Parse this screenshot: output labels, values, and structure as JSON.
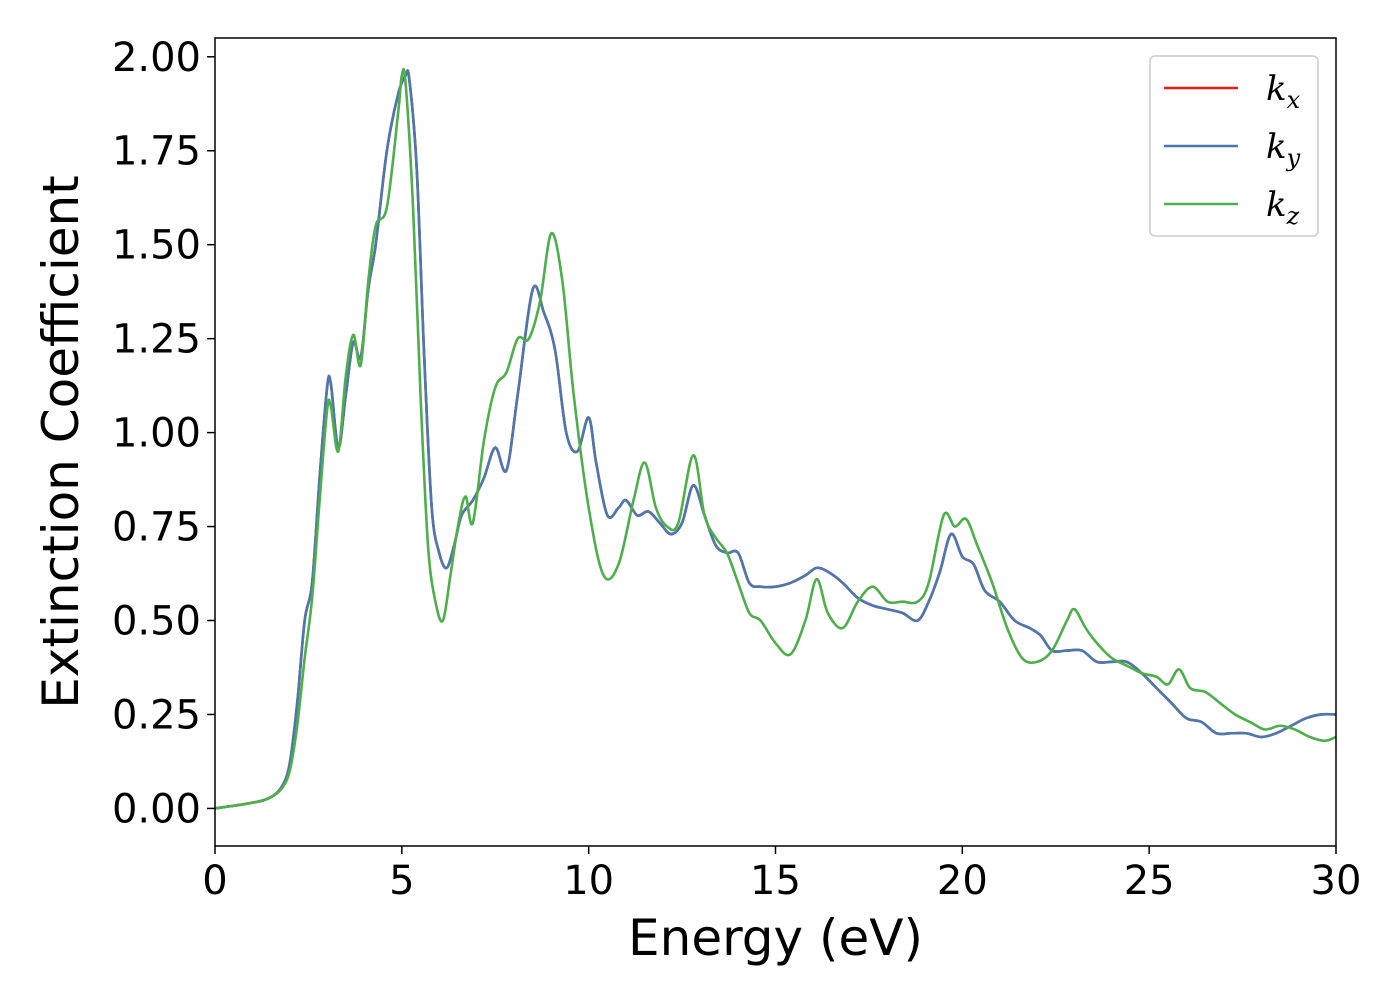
{
  "chart_data": {
    "type": "line",
    "title": "",
    "xlabel": "Energy (eV)",
    "ylabel": "Extinction Coefficient",
    "xlim": [
      0,
      30
    ],
    "ylim": [
      -0.1,
      2.05
    ],
    "xticks": [
      0,
      5,
      10,
      15,
      20,
      25,
      30
    ],
    "xtick_labels": [
      "0",
      "5",
      "10",
      "15",
      "20",
      "25",
      "30"
    ],
    "yticks": [
      0,
      0.25,
      0.5,
      0.75,
      1.0,
      1.25,
      1.5,
      1.75,
      2.0
    ],
    "ytick_labels": [
      "0.00",
      "0.25",
      "0.50",
      "0.75",
      "1.00",
      "1.25",
      "1.50",
      "1.75",
      "2.00"
    ],
    "grid": false,
    "legend_position": "top-right",
    "series": [
      {
        "name": "k_x",
        "legend_base": "k",
        "legend_sub": "x",
        "color": "#e41a1c",
        "x": [
          0,
          1,
          1.5,
          1.8,
          2.0,
          2.2,
          2.4,
          2.6,
          2.8,
          3.0,
          3.1,
          3.3,
          3.5,
          3.7,
          3.9,
          4.1,
          4.3,
          4.6,
          4.9,
          5.1,
          5.2,
          5.4,
          5.6,
          5.8,
          6.0,
          6.2,
          6.4,
          6.6,
          6.9,
          7.2,
          7.5,
          7.8,
          8.1,
          8.5,
          8.8,
          9.1,
          9.4,
          9.7,
          10.0,
          10.2,
          10.5,
          10.8,
          11.0,
          11.3,
          11.6,
          11.9,
          12.2,
          12.5,
          12.8,
          13.1,
          13.4,
          13.7,
          14.0,
          14.3,
          14.6,
          15.0,
          15.4,
          15.8,
          16.1,
          16.4,
          16.8,
          17.2,
          17.6,
          18.0,
          18.4,
          18.8,
          19.1,
          19.4,
          19.7,
          20.0,
          20.3,
          20.6,
          21.0,
          21.4,
          21.8,
          22.1,
          22.4,
          22.8,
          23.2,
          23.6,
          24.0,
          24.4,
          24.8,
          25.2,
          25.6,
          26.0,
          26.4,
          26.8,
          27.2,
          27.6,
          28.0,
          28.4,
          28.8,
          29.2,
          29.6,
          30.0
        ],
        "y": [
          0.0,
          0.015,
          0.03,
          0.06,
          0.12,
          0.28,
          0.5,
          0.6,
          0.88,
          1.12,
          1.13,
          0.96,
          1.1,
          1.24,
          1.2,
          1.38,
          1.5,
          1.75,
          1.9,
          1.95,
          1.94,
          1.7,
          1.2,
          0.8,
          0.68,
          0.64,
          0.7,
          0.78,
          0.82,
          0.88,
          0.96,
          0.9,
          1.1,
          1.38,
          1.32,
          1.22,
          1.0,
          0.95,
          1.04,
          0.92,
          0.78,
          0.8,
          0.82,
          0.78,
          0.79,
          0.76,
          0.73,
          0.76,
          0.86,
          0.78,
          0.7,
          0.68,
          0.68,
          0.6,
          0.59,
          0.59,
          0.6,
          0.62,
          0.64,
          0.63,
          0.6,
          0.56,
          0.54,
          0.53,
          0.52,
          0.5,
          0.55,
          0.63,
          0.73,
          0.67,
          0.65,
          0.58,
          0.55,
          0.5,
          0.48,
          0.46,
          0.42,
          0.42,
          0.42,
          0.39,
          0.39,
          0.39,
          0.36,
          0.32,
          0.28,
          0.24,
          0.23,
          0.2,
          0.2,
          0.2,
          0.19,
          0.2,
          0.22,
          0.24,
          0.25,
          0.25
        ]
      },
      {
        "name": "k_y",
        "legend_base": "k",
        "legend_sub": "y",
        "color": "#4a78b0",
        "x": [
          0,
          1,
          1.5,
          1.8,
          2.0,
          2.2,
          2.4,
          2.6,
          2.8,
          3.0,
          3.1,
          3.3,
          3.5,
          3.7,
          3.9,
          4.1,
          4.3,
          4.6,
          4.9,
          5.1,
          5.2,
          5.4,
          5.6,
          5.8,
          6.0,
          6.2,
          6.4,
          6.6,
          6.9,
          7.2,
          7.5,
          7.8,
          8.1,
          8.5,
          8.8,
          9.1,
          9.4,
          9.7,
          10.0,
          10.2,
          10.5,
          10.8,
          11.0,
          11.3,
          11.6,
          11.9,
          12.2,
          12.5,
          12.8,
          13.1,
          13.4,
          13.7,
          14.0,
          14.3,
          14.6,
          15.0,
          15.4,
          15.8,
          16.1,
          16.4,
          16.8,
          17.2,
          17.6,
          18.0,
          18.4,
          18.8,
          19.1,
          19.4,
          19.7,
          20.0,
          20.3,
          20.6,
          21.0,
          21.4,
          21.8,
          22.1,
          22.4,
          22.8,
          23.2,
          23.6,
          24.0,
          24.4,
          24.8,
          25.2,
          25.6,
          26.0,
          26.4,
          26.8,
          27.2,
          27.6,
          28.0,
          28.4,
          28.8,
          29.2,
          29.6,
          30.0
        ],
        "y": [
          0.0,
          0.015,
          0.03,
          0.06,
          0.12,
          0.28,
          0.5,
          0.6,
          0.88,
          1.12,
          1.13,
          0.96,
          1.1,
          1.24,
          1.2,
          1.38,
          1.5,
          1.75,
          1.9,
          1.95,
          1.94,
          1.7,
          1.2,
          0.8,
          0.68,
          0.64,
          0.7,
          0.78,
          0.82,
          0.88,
          0.96,
          0.9,
          1.1,
          1.38,
          1.32,
          1.22,
          1.0,
          0.95,
          1.04,
          0.92,
          0.78,
          0.8,
          0.82,
          0.78,
          0.79,
          0.76,
          0.73,
          0.76,
          0.86,
          0.78,
          0.7,
          0.68,
          0.68,
          0.6,
          0.59,
          0.59,
          0.6,
          0.62,
          0.64,
          0.63,
          0.6,
          0.56,
          0.54,
          0.53,
          0.52,
          0.5,
          0.55,
          0.63,
          0.73,
          0.67,
          0.65,
          0.58,
          0.55,
          0.5,
          0.48,
          0.46,
          0.42,
          0.42,
          0.42,
          0.39,
          0.39,
          0.39,
          0.36,
          0.32,
          0.28,
          0.24,
          0.23,
          0.2,
          0.2,
          0.2,
          0.19,
          0.2,
          0.22,
          0.24,
          0.25,
          0.25
        ]
      },
      {
        "name": "k_z",
        "legend_base": "k",
        "legend_sub": "z",
        "color": "#4daf4a",
        "x": [
          0,
          1,
          1.5,
          1.8,
          2.0,
          2.2,
          2.4,
          2.6,
          2.8,
          3.0,
          3.1,
          3.3,
          3.5,
          3.7,
          3.9,
          4.1,
          4.3,
          4.6,
          4.9,
          5.0,
          5.1,
          5.3,
          5.5,
          5.7,
          5.9,
          6.1,
          6.3,
          6.5,
          6.7,
          6.9,
          7.2,
          7.5,
          7.8,
          8.1,
          8.4,
          8.7,
          9.0,
          9.3,
          9.6,
          10.0,
          10.4,
          10.8,
          11.2,
          11.5,
          11.8,
          12.1,
          12.4,
          12.8,
          13.1,
          13.4,
          13.7,
          14.0,
          14.3,
          14.6,
          15.0,
          15.4,
          15.8,
          16.1,
          16.4,
          16.8,
          17.2,
          17.6,
          18.0,
          18.4,
          18.8,
          19.1,
          19.5,
          19.8,
          20.1,
          20.4,
          20.8,
          21.2,
          21.6,
          22.0,
          22.4,
          22.8,
          23.0,
          23.3,
          23.6,
          24.0,
          24.4,
          24.8,
          25.2,
          25.5,
          25.8,
          26.1,
          26.5,
          26.9,
          27.3,
          27.7,
          28.1,
          28.5,
          28.9,
          29.3,
          29.7,
          30.0
        ],
        "y": [
          0.0,
          0.015,
          0.03,
          0.055,
          0.1,
          0.22,
          0.4,
          0.56,
          0.82,
          1.06,
          1.07,
          0.95,
          1.15,
          1.26,
          1.18,
          1.4,
          1.55,
          1.6,
          1.85,
          1.95,
          1.93,
          1.6,
          1.1,
          0.7,
          0.55,
          0.5,
          0.62,
          0.75,
          0.83,
          0.76,
          0.98,
          1.12,
          1.16,
          1.25,
          1.25,
          1.35,
          1.53,
          1.4,
          1.1,
          0.8,
          0.62,
          0.65,
          0.82,
          0.92,
          0.8,
          0.75,
          0.76,
          0.94,
          0.78,
          0.72,
          0.68,
          0.6,
          0.52,
          0.5,
          0.44,
          0.41,
          0.5,
          0.61,
          0.52,
          0.48,
          0.55,
          0.59,
          0.55,
          0.55,
          0.55,
          0.6,
          0.78,
          0.75,
          0.77,
          0.7,
          0.6,
          0.48,
          0.4,
          0.39,
          0.42,
          0.5,
          0.53,
          0.48,
          0.44,
          0.4,
          0.38,
          0.36,
          0.35,
          0.33,
          0.37,
          0.32,
          0.31,
          0.28,
          0.25,
          0.23,
          0.21,
          0.22,
          0.21,
          0.19,
          0.18,
          0.19
        ]
      }
    ]
  }
}
